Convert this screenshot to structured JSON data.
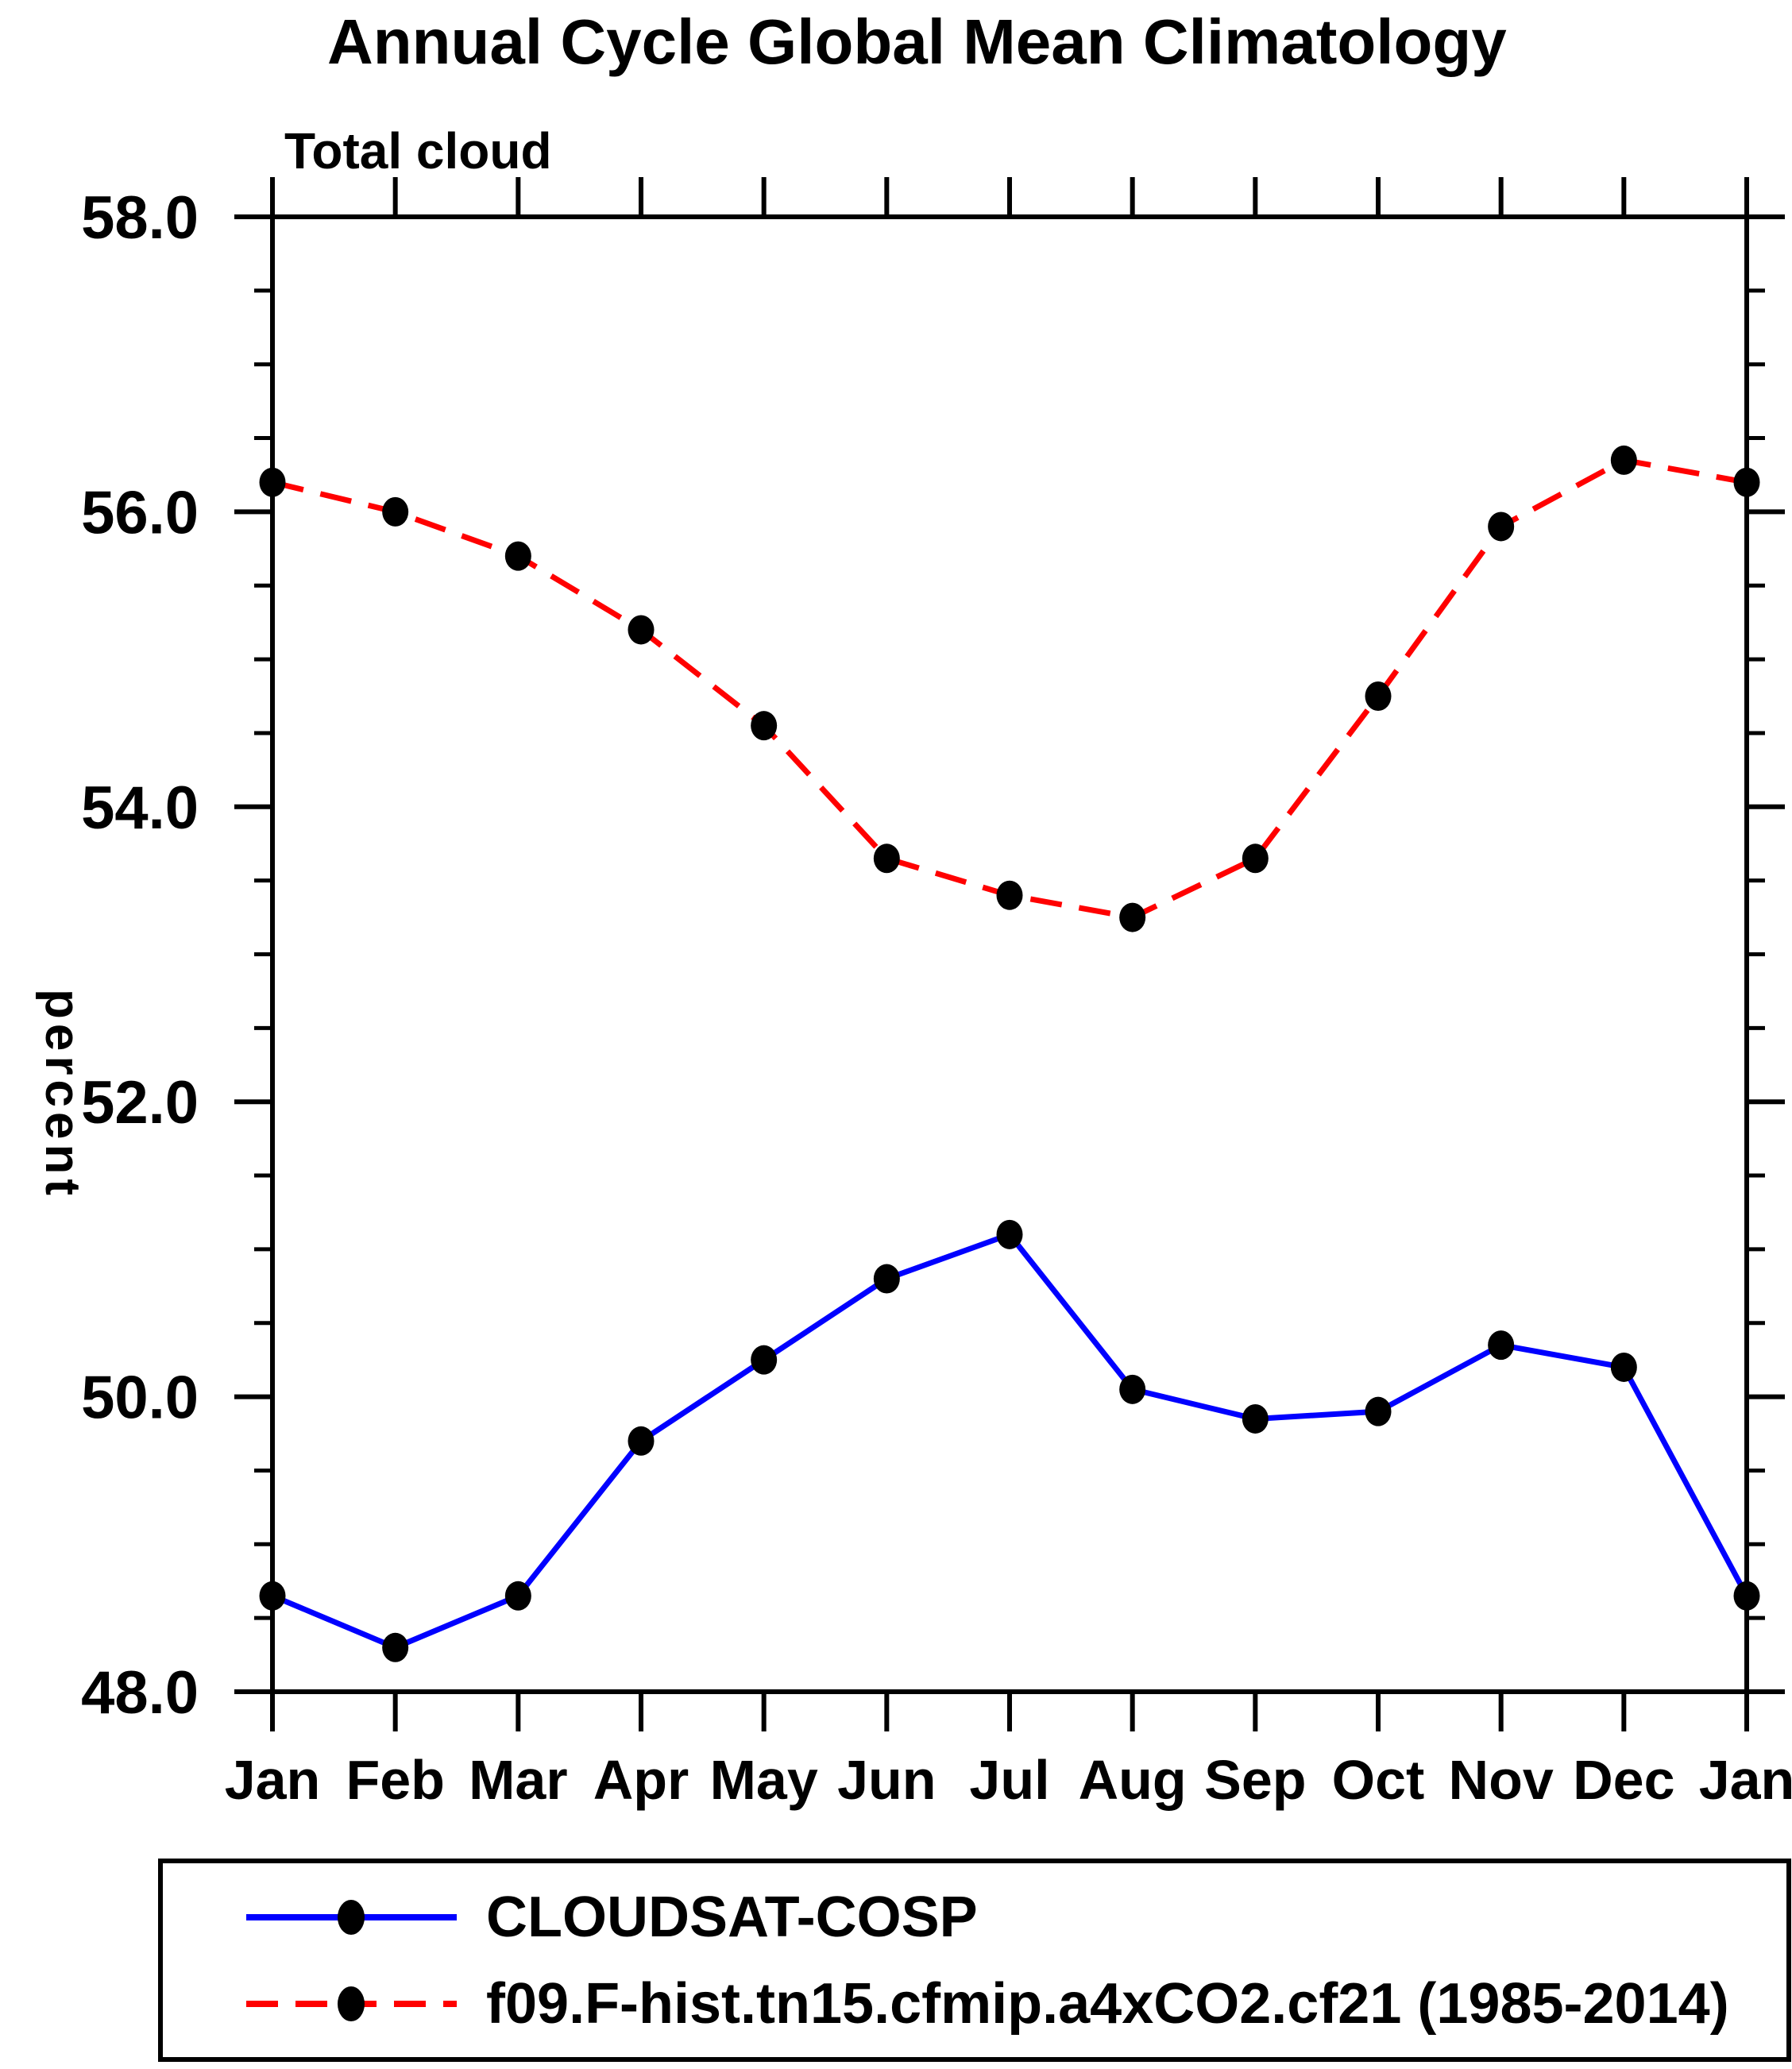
{
  "title": "Annual Cycle Global Mean Climatology",
  "subtitle": "Total cloud",
  "ylabel": "percent",
  "legend": {
    "position": "bottom",
    "items": [
      {
        "label": "CLOUDSAT-COSP",
        "line_color": "#0000ff",
        "line_style": "solid",
        "marker": "filled-circle",
        "marker_color": "#000000"
      },
      {
        "label": "f09.F-hist.tn15.cfmip.a4xCO2.cf21 (1985-2014)",
        "line_color": "#ff0000",
        "line_style": "dashed",
        "marker": "filled-circle",
        "marker_color": "#000000"
      }
    ]
  },
  "chart_data": {
    "type": "line",
    "title": "Annual Cycle Global Mean Climatology",
    "subtitle": "Total cloud",
    "xlabel": "",
    "ylabel": "percent",
    "categories": [
      "Jan",
      "Feb",
      "Mar",
      "Apr",
      "May",
      "Jun",
      "Jul",
      "Aug",
      "Sep",
      "Oct",
      "Nov",
      "Dec",
      "Jan"
    ],
    "series": [
      {
        "name": "CLOUDSAT-COSP",
        "color": "#0000ff",
        "line_style": "solid",
        "marker": "filled-circle",
        "marker_color": "#000000",
        "values": [
          48.65,
          48.3,
          48.65,
          49.7,
          50.25,
          50.8,
          51.1,
          50.05,
          49.85,
          49.9,
          50.35,
          50.2,
          48.65
        ]
      },
      {
        "name": "f09.F-hist.tn15.cfmip.a4xCO2.cf21 (1985-2014)",
        "color": "#ff0000",
        "line_style": "dashed",
        "marker": "filled-circle",
        "marker_color": "#000000",
        "values": [
          56.2,
          56.0,
          55.7,
          55.2,
          54.55,
          53.65,
          53.4,
          53.25,
          53.65,
          54.75,
          55.9,
          56.35,
          56.2
        ]
      }
    ],
    "ylim": [
      48.0,
      58.0
    ],
    "ytick_step": 2.0,
    "yminor_step": 0.5,
    "ytick_labels": [
      "48.0",
      "50.0",
      "52.0",
      "54.0",
      "56.0",
      "58.0"
    ],
    "grid": "off",
    "legend_position": "bottom",
    "axis_color": "#000000"
  }
}
